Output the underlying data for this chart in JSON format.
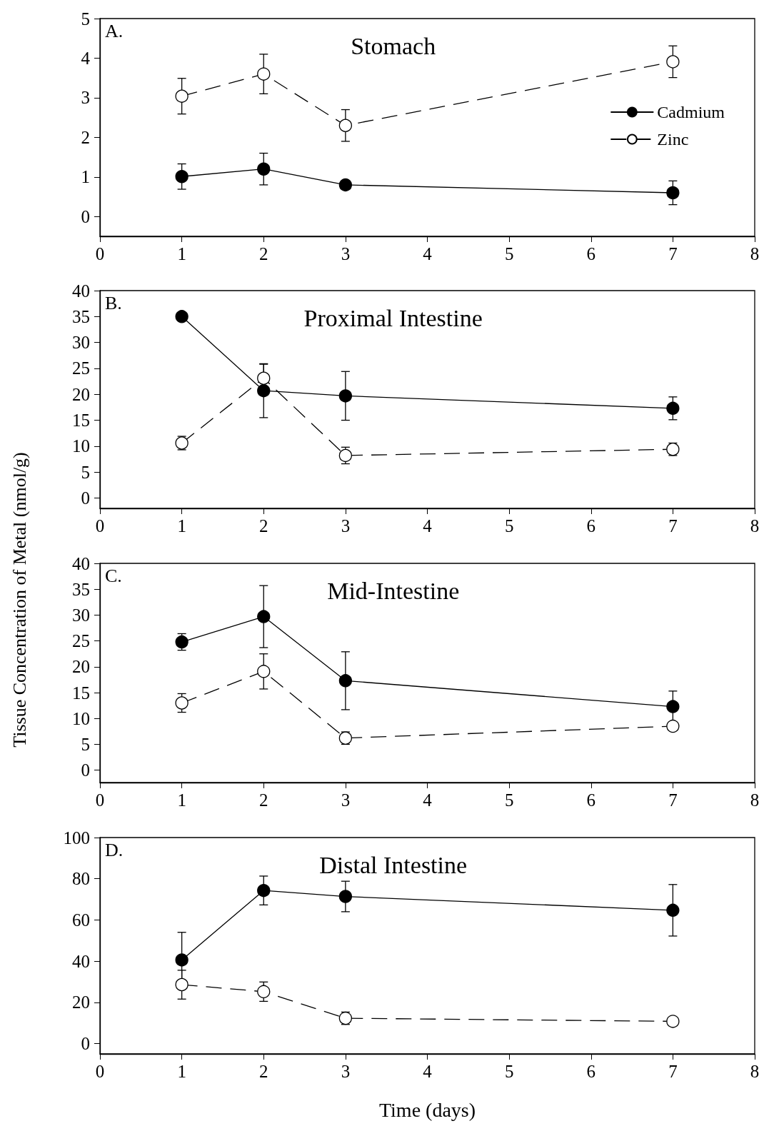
{
  "chart_data": [
    {
      "type": "line",
      "title": "Stomach",
      "annotations": [
        "A."
      ],
      "x": [
        1,
        2,
        3,
        7
      ],
      "xlim": [
        0,
        8
      ],
      "xticks": [
        0,
        1,
        2,
        3,
        4,
        5,
        6,
        7,
        8
      ],
      "ylim": [
        -0.5,
        5
      ],
      "yticks": [
        0,
        1,
        2,
        3,
        4,
        5
      ],
      "grid": false,
      "legend": "top right",
      "marker": "circle",
      "series": [
        {
          "name": "Cadmium",
          "color": "#000000",
          "line_style": "solid",
          "values": [
            1.01,
            1.2,
            0.8,
            0.6
          ],
          "errors": [
            0.32,
            0.4,
            null,
            0.3
          ]
        },
        {
          "name": "Zinc",
          "color": "#000000",
          "line_style": "dashed",
          "values": [
            3.04,
            3.6,
            2.3,
            3.91
          ],
          "errors": [
            0.45,
            0.5,
            0.4,
            0.4
          ]
        }
      ]
    },
    {
      "type": "line",
      "title": "Proximal Intestine",
      "annotations": [
        "B."
      ],
      "ylabel": "Tissue Concentration of Metal (nmol/g)",
      "x": [
        1,
        2,
        3,
        7
      ],
      "xlim": [
        0,
        8
      ],
      "xticks": [
        0,
        1,
        2,
        3,
        4,
        5,
        6,
        7,
        8
      ],
      "ylim": [
        -2,
        40
      ],
      "yticks": [
        0,
        5,
        10,
        15,
        20,
        25,
        30,
        35,
        40
      ],
      "grid": false,
      "legend": false,
      "marker": "circle",
      "series": [
        {
          "color": "#000000",
          "line_style": "solid",
          "values": [
            35,
            20.7,
            19.7,
            17.3
          ],
          "errors": [
            0.6,
            5.2,
            4.7,
            2.2
          ]
        },
        {
          "color": "#000000",
          "line_style": "dashed",
          "values": [
            10.6,
            23.1,
            8.2,
            9.4
          ],
          "errors": [
            1.3,
            2.7,
            1.6,
            1.2
          ]
        }
      ]
    },
    {
      "type": "line",
      "title": "Mid-Intestine",
      "annotations": [
        "C."
      ],
      "x": [
        1,
        2,
        3,
        7
      ],
      "xlim": [
        0,
        8
      ],
      "xticks": [
        0,
        1,
        2,
        3,
        4,
        5,
        6,
        7,
        8
      ],
      "ylim": [
        -2.4,
        40
      ],
      "yticks": [
        0,
        5,
        10,
        15,
        20,
        25,
        30,
        35,
        40
      ],
      "grid": false,
      "legend": false,
      "marker": "circle",
      "series": [
        {
          "color": "#000000",
          "line_style": "solid",
          "values": [
            24.8,
            29.7,
            17.3,
            12.3
          ],
          "errors": [
            1.6,
            6,
            5.6,
            3
          ]
        },
        {
          "color": "#000000",
          "line_style": "dashed",
          "values": [
            13,
            19.1,
            6.2,
            8.5
          ],
          "errors": [
            1.8,
            3.4,
            1.2,
            null
          ]
        }
      ]
    },
    {
      "type": "line",
      "title": "Distal Intestine",
      "annotations": [
        "D."
      ],
      "xlabel": "Time (days)",
      "x": [
        1,
        2,
        3,
        7
      ],
      "xlim": [
        0,
        8
      ],
      "xticks": [
        0,
        1,
        2,
        3,
        4,
        5,
        6,
        7,
        8
      ],
      "ylim": [
        -5,
        100
      ],
      "yticks": [
        0,
        20,
        40,
        60,
        80,
        100
      ],
      "grid": false,
      "legend": false,
      "marker": "circle",
      "series": [
        {
          "color": "#000000",
          "line_style": "solid",
          "values": [
            40.6,
            74.3,
            71.4,
            64.7
          ],
          "errors": [
            13.4,
            7,
            7.4,
            12.5
          ]
        },
        {
          "color": "#000000",
          "line_style": "dashed",
          "values": [
            28.6,
            25.2,
            12.3,
            10.8
          ],
          "errors": [
            7,
            4.7,
            3,
            null
          ]
        }
      ]
    }
  ]
}
